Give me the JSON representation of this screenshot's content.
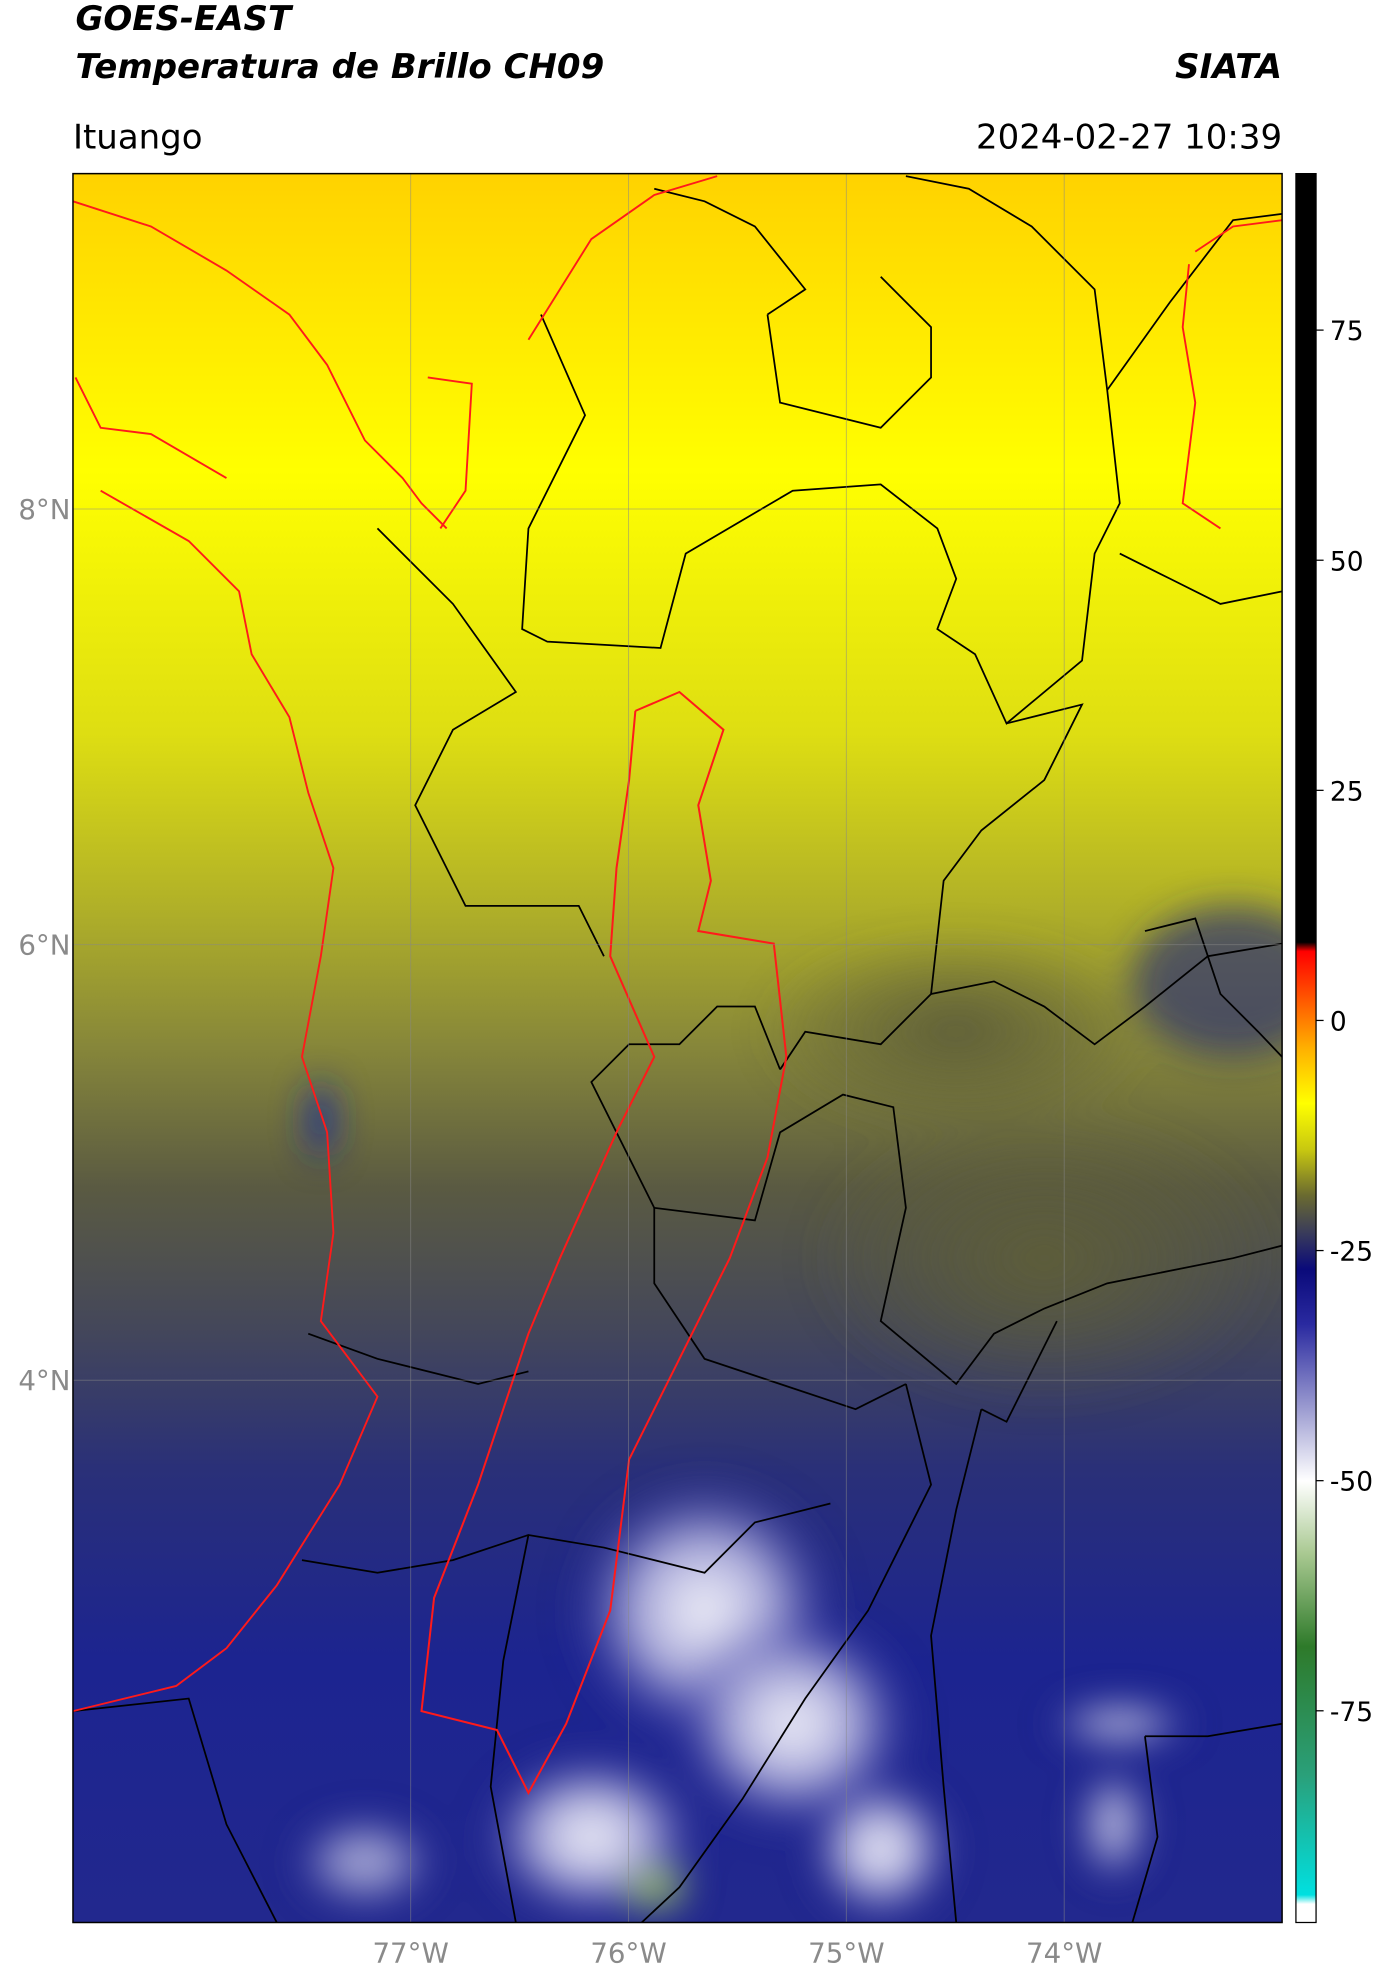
{
  "header": {
    "title": "GOES-EAST",
    "subtitle": "Temperatura de Brillo CH09",
    "source": "SIATA",
    "location": "Ituango",
    "datetime": "2024-02-27 10:39"
  },
  "map": {
    "xlim": [
      -78.55,
      -73.0
    ],
    "ylim": [
      1.51,
      9.54
    ],
    "xticks": [
      {
        "value": -77,
        "label": "77°W"
      },
      {
        "value": -76,
        "label": "76°W"
      },
      {
        "value": -75,
        "label": "75°W"
      },
      {
        "value": -74,
        "label": "74°W"
      }
    ],
    "yticks": [
      {
        "value": 8,
        "label": "8°N"
      },
      {
        "value": 6,
        "label": "6°N"
      },
      {
        "value": 4,
        "label": "4°N"
      }
    ],
    "grid": true
  },
  "colorbar": {
    "lim": [
      -98,
      92
    ],
    "ticks": [
      75,
      50,
      25,
      0,
      -25,
      -50,
      -75
    ],
    "stops": [
      {
        "value": -98,
        "color": "#ffffff"
      },
      {
        "value": -96,
        "color": "#ffffff"
      },
      {
        "value": -95,
        "color": "#00e0e0"
      },
      {
        "value": -82,
        "color": "#2aa07a"
      },
      {
        "value": -68,
        "color": "#2e7a2a"
      },
      {
        "value": -58,
        "color": "#a8c890"
      },
      {
        "value": -50,
        "color": "#ffffff"
      },
      {
        "value": -42,
        "color": "#9a9ad0"
      },
      {
        "value": -33,
        "color": "#2a2aa0"
      },
      {
        "value": -27,
        "color": "#0a0a7a"
      },
      {
        "value": -23,
        "color": "#3a3c5a"
      },
      {
        "value": -19,
        "color": "#6a6a30"
      },
      {
        "value": -14,
        "color": "#c8c810"
      },
      {
        "value": -9,
        "color": "#ffff00"
      },
      {
        "value": -3,
        "color": "#ffb000"
      },
      {
        "value": 7.5,
        "color": "#ff0000"
      },
      {
        "value": 8.5,
        "color": "#000000"
      },
      {
        "value": 92,
        "color": "#000000"
      }
    ]
  }
}
